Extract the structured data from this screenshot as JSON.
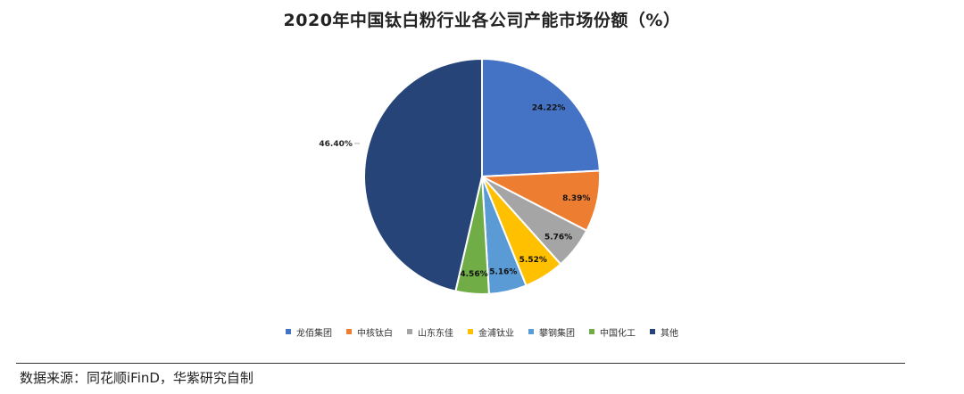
{
  "chart_data": {
    "type": "pie",
    "title": "2020年中国钛白粉行业各公司产能市场份额（%）",
    "categories": [
      "龙佰集团",
      "中核钛白",
      "山东东佳",
      "金浦钛业",
      "攀钢集团",
      "中国化工",
      "其他"
    ],
    "values": [
      24.22,
      8.39,
      5.76,
      5.52,
      5.16,
      4.56,
      46.4
    ],
    "value_labels": [
      "24.22%",
      "8.39%",
      "5.76%",
      "5.52%",
      "5.16%",
      "4.56%",
      "46.40%"
    ],
    "colors": [
      "#4472C4",
      "#ED7D31",
      "#A5A5A5",
      "#FFC000",
      "#5B9BD5",
      "#70AD47",
      "#264478"
    ],
    "start_angle": "12 o'clock",
    "direction": "clockwise",
    "legend_position": "bottom"
  },
  "source": "数据来源：同花顺iFinD，华紫研究自制"
}
